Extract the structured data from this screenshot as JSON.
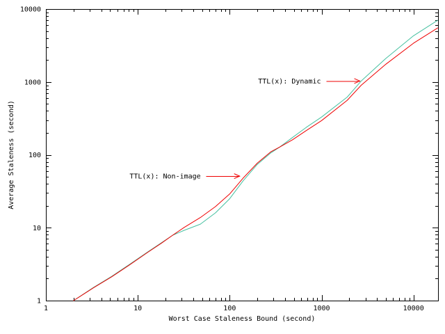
{
  "chart_data": {
    "type": "line",
    "title": "",
    "xlabel": "Worst Case Staleness Bound (second)",
    "ylabel": "Average Staleness (second)",
    "x_scale": "log",
    "y_scale": "log",
    "xlim": [
      1,
      18500
    ],
    "ylim": [
      1,
      10000
    ],
    "grid": false,
    "legend_position": "none",
    "x_ticks": [
      1,
      10,
      100,
      1000,
      10000
    ],
    "x_tick_labels": [
      "1",
      "10",
      "100",
      "1000",
      "10000"
    ],
    "y_ticks": [
      1,
      10,
      100,
      1000,
      10000
    ],
    "y_tick_labels": [
      "1",
      "10",
      "100",
      "1000",
      "10000"
    ],
    "axis_color": "#000000",
    "x": [
      2,
      3.3,
      5.2,
      8,
      13,
      18,
      24,
      32,
      48,
      70,
      100,
      140,
      200,
      280,
      350,
      480,
      680,
      1000,
      1900,
      2700,
      5000,
      10000,
      18300
    ],
    "series": [
      {
        "name": "TTL(x): Dynamic",
        "color": "#45c0a0",
        "values": [
          1.0,
          1.52,
          2.15,
          3.1,
          4.7,
          6.2,
          7.9,
          9.2,
          11.2,
          16,
          25,
          44,
          74,
          106,
          128,
          172,
          238,
          330,
          620,
          1030,
          2100,
          4300,
          7000
        ]
      },
      {
        "name": "TTL(x): Non-image",
        "color": "#ee0000",
        "values": [
          1.0,
          1.5,
          2.12,
          3.05,
          4.65,
          6.1,
          7.9,
          10.1,
          13.8,
          19.5,
          29,
          48,
          77,
          110,
          128,
          160,
          215,
          295,
          560,
          900,
          1750,
          3400,
          5500
        ]
      }
    ],
    "annotations": [
      {
        "id": "dynamic",
        "text": "TTL(x): Dynamic",
        "target_x": 2700,
        "target_y": 1030,
        "arrow_color": "#ee0000"
      },
      {
        "id": "non-image",
        "text": "TTL(x): Non-image",
        "target_x": 133,
        "target_y": 51,
        "arrow_color": "#ee0000"
      }
    ]
  }
}
